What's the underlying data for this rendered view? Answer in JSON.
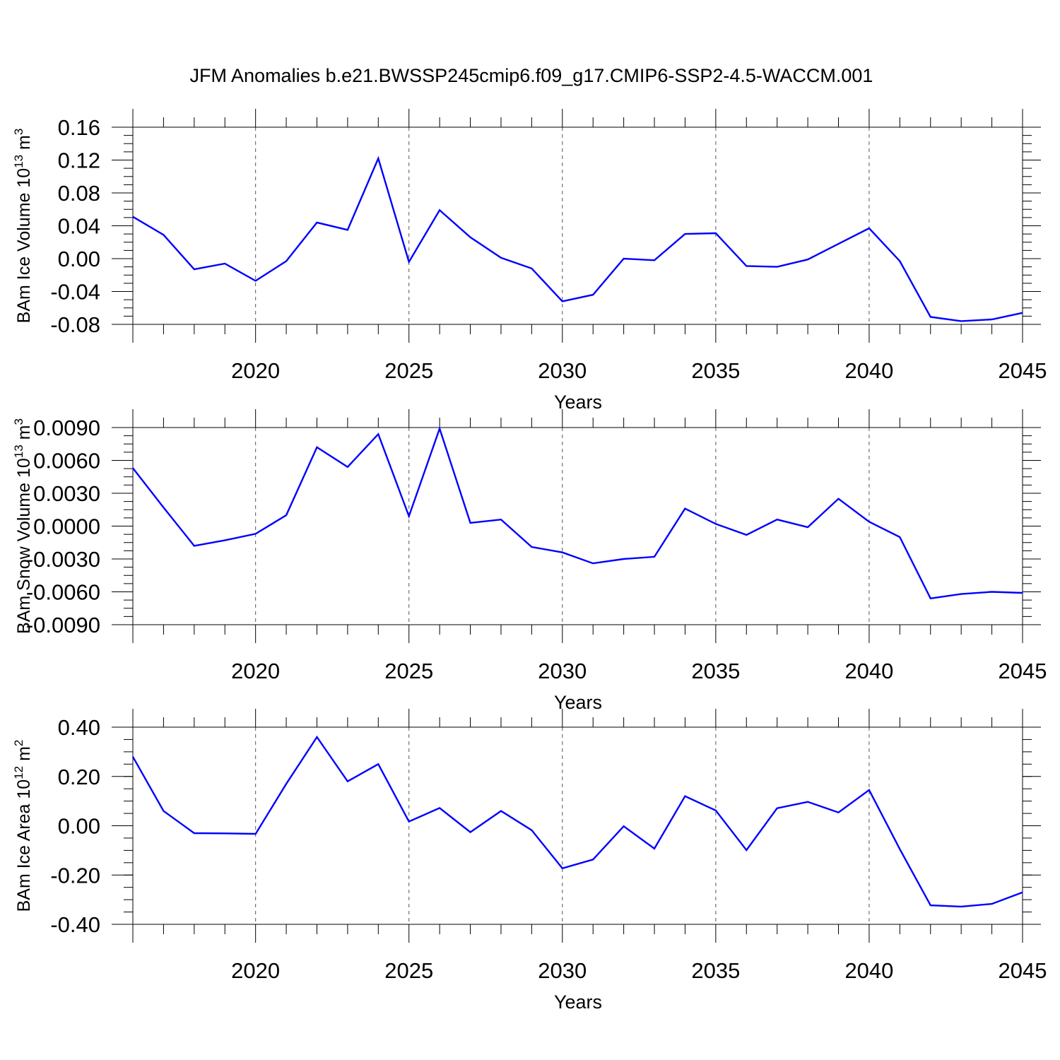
{
  "figure": {
    "title": "JFM Anomalies b.e21.BWSSP245cmip6.f09_g17.CMIP6-SSP2-4.5-WACCM.001"
  },
  "colors": {
    "line": "#0000ff",
    "axis": "#000000",
    "grid": "#555555"
  },
  "chart_data": [
    {
      "type": "line",
      "ylabel": "BAm Ice Volume 10",
      "ylabel_sup": "13",
      "ylabel_unit": " m",
      "ylabel_unit_sup": "3",
      "xlabel": "Years",
      "xlim": [
        2016,
        2045
      ],
      "ylim": [
        -0.08,
        0.16
      ],
      "x_ticks": [
        2020,
        2025,
        2030,
        2035,
        2040,
        2045
      ],
      "x_tick_labels": [
        "2020",
        "2025",
        "2030",
        "2035",
        "2040",
        "2045"
      ],
      "y_ticks": [
        -0.08,
        -0.04,
        0.0,
        0.04,
        0.08,
        0.12,
        0.16
      ],
      "y_tick_labels": [
        "-0.08",
        "-0.04",
        "0.00",
        "0.04",
        "0.08",
        "0.12",
        "0.16"
      ],
      "y_minor_step": 0.01,
      "grid": "vertical dashed at major x ticks",
      "x": [
        2016,
        2017,
        2018,
        2019,
        2020,
        2021,
        2022,
        2023,
        2024,
        2025,
        2026,
        2027,
        2028,
        2029,
        2030,
        2031,
        2032,
        2033,
        2034,
        2035,
        2036,
        2037,
        2038,
        2039,
        2040,
        2041,
        2042,
        2043,
        2044,
        2045
      ],
      "series": [
        {
          "values": [
            0.051,
            0.029,
            -0.013,
            -0.006,
            -0.027,
            -0.003,
            0.044,
            0.035,
            0.122,
            -0.004,
            0.059,
            0.026,
            0.001,
            -0.012,
            -0.052,
            -0.044,
            0.0,
            -0.002,
            0.03,
            0.031,
            -0.009,
            -0.01,
            -0.001,
            0.018,
            0.037,
            -0.003,
            -0.071,
            -0.076,
            -0.074,
            -0.066
          ]
        }
      ]
    },
    {
      "type": "line",
      "ylabel": "BAm Snow Volume 10",
      "ylabel_sup": "13",
      "ylabel_unit": " m",
      "ylabel_unit_sup": "3",
      "xlabel": "Years",
      "xlim": [
        2016,
        2045
      ],
      "ylim": [
        -0.009,
        0.009
      ],
      "x_ticks": [
        2020,
        2025,
        2030,
        2035,
        2040,
        2045
      ],
      "x_tick_labels": [
        "2020",
        "2025",
        "2030",
        "2035",
        "2040",
        "2045"
      ],
      "y_ticks": [
        -0.009,
        -0.006,
        -0.003,
        0.0,
        0.003,
        0.006,
        0.009
      ],
      "y_tick_labels": [
        "-0.0090",
        "-0.0060",
        "-0.0030",
        "0.0000",
        "0.0030",
        "0.0060",
        "0.0090"
      ],
      "y_minor_step": 0.00075,
      "grid": "vertical dashed at major x ticks",
      "x": [
        2016,
        2017,
        2018,
        2019,
        2020,
        2021,
        2022,
        2023,
        2024,
        2025,
        2026,
        2027,
        2028,
        2029,
        2030,
        2031,
        2032,
        2033,
        2034,
        2035,
        2036,
        2037,
        2038,
        2039,
        2040,
        2041,
        2042,
        2043,
        2044,
        2045
      ],
      "series": [
        {
          "values": [
            0.0053,
            0.0017,
            -0.0018,
            -0.0013,
            -0.0007,
            0.001,
            0.0072,
            0.0054,
            0.0084,
            0.0009,
            0.0089,
            0.0003,
            0.0006,
            -0.0019,
            -0.0024,
            -0.0034,
            -0.003,
            -0.0028,
            0.0016,
            0.0002,
            -0.0008,
            0.0006,
            -0.0001,
            0.0025,
            0.0004,
            -0.001,
            -0.0066,
            -0.0062,
            -0.006,
            -0.0061
          ]
        }
      ]
    },
    {
      "type": "line",
      "ylabel": "BAm Ice Area 10",
      "ylabel_sup": "12",
      "ylabel_unit": " m",
      "ylabel_unit_sup": "2",
      "xlabel": "Years",
      "xlim": [
        2016,
        2045
      ],
      "ylim": [
        -0.4,
        0.4
      ],
      "x_ticks": [
        2020,
        2025,
        2030,
        2035,
        2040,
        2045
      ],
      "x_tick_labels": [
        "2020",
        "2025",
        "2030",
        "2035",
        "2040",
        "2045"
      ],
      "y_ticks": [
        -0.4,
        -0.2,
        0.0,
        0.2,
        0.4
      ],
      "y_tick_labels": [
        "-0.40",
        "-0.20",
        "0.00",
        "0.20",
        "0.40"
      ],
      "y_minor_step": 0.05,
      "grid": "vertical dashed at major x ticks",
      "x": [
        2016,
        2017,
        2018,
        2019,
        2020,
        2021,
        2022,
        2023,
        2024,
        2025,
        2026,
        2027,
        2028,
        2029,
        2030,
        2031,
        2032,
        2033,
        2034,
        2035,
        2036,
        2037,
        2038,
        2039,
        2040,
        2041,
        2042,
        2043,
        2044,
        2045
      ],
      "series": [
        {
          "values": [
            0.28,
            0.06,
            -0.03,
            -0.031,
            -0.033,
            0.17,
            0.36,
            0.18,
            0.25,
            0.017,
            0.072,
            -0.026,
            0.06,
            -0.018,
            -0.173,
            -0.137,
            -0.002,
            -0.093,
            0.12,
            0.062,
            -0.099,
            0.071,
            0.097,
            0.054,
            0.145,
            -0.095,
            -0.323,
            -0.328,
            -0.317,
            -0.27
          ]
        }
      ]
    }
  ]
}
